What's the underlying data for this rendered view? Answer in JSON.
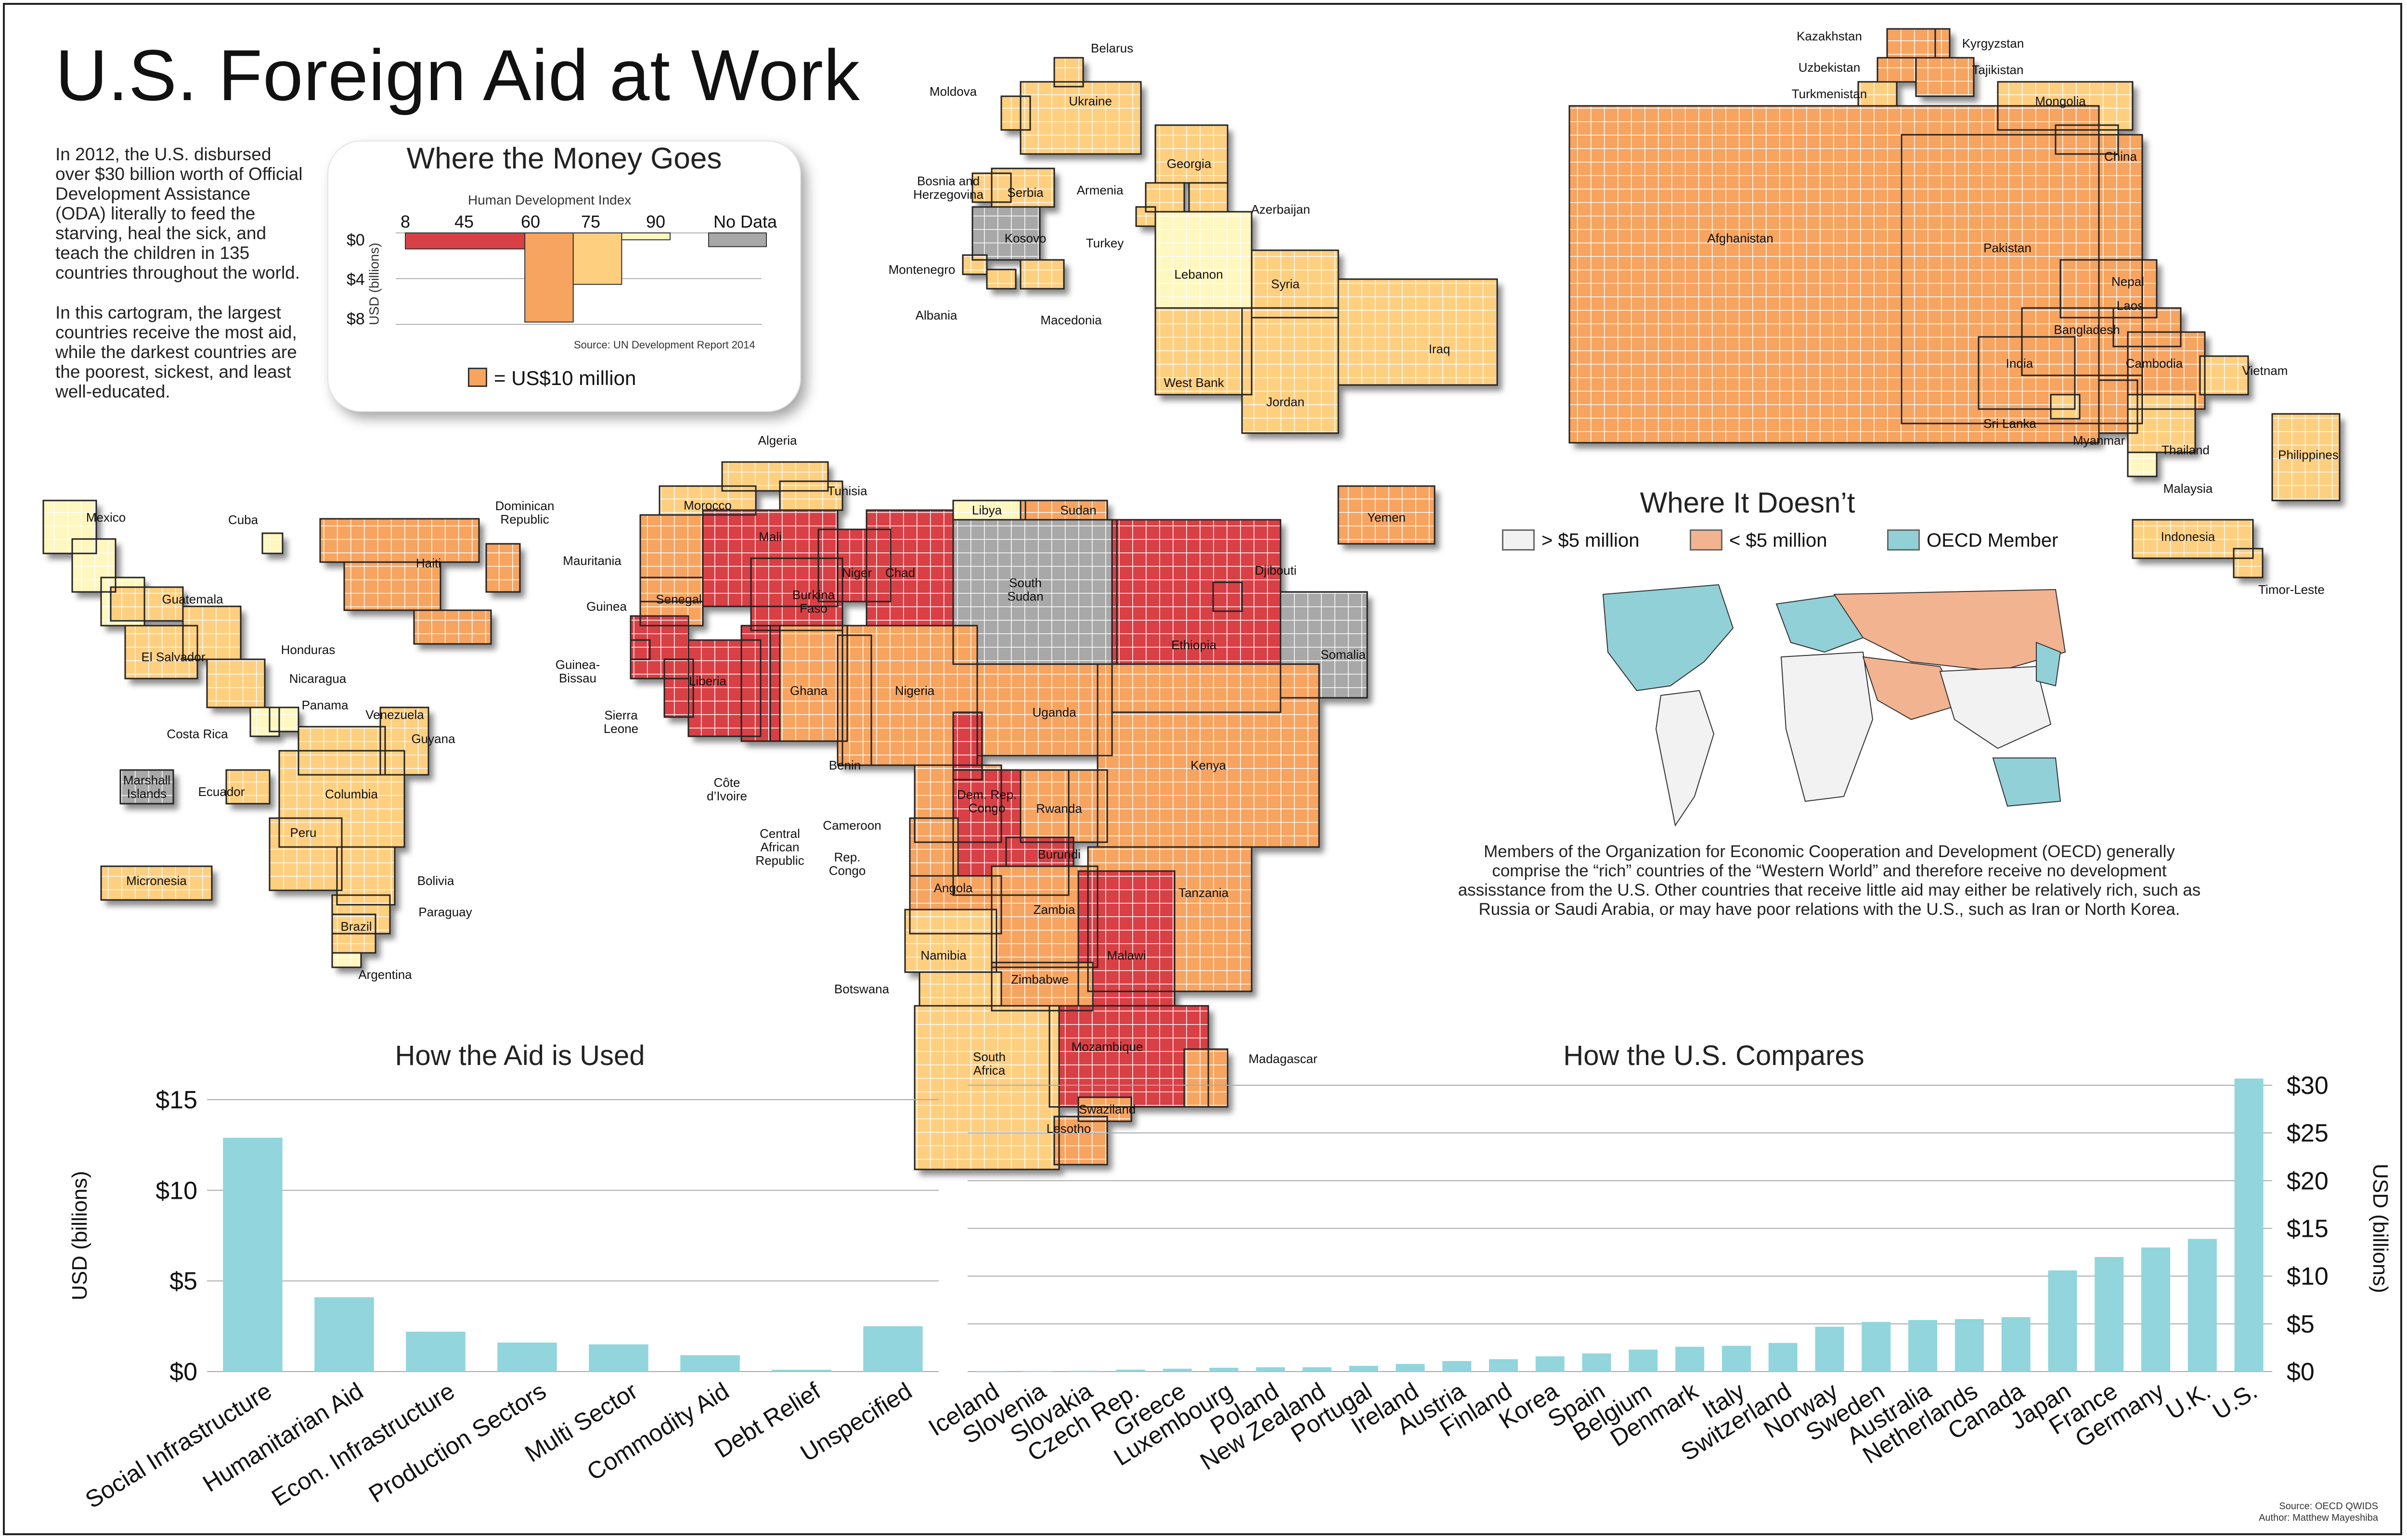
{
  "title": "U.S. Foreign Aid at Work",
  "intro": {
    "p1": "In 2012, the U.S. disbursed over $30 billion worth of Official Development Assistance (ODA) literally to feed the starving, heal the sick, and teach the children in 135 countries throughout the world.",
    "p2": "In this cartogram, the largest countries receive the most aid, while the darkest countries are the poorest, sickest, and least well-educated."
  },
  "legend": {
    "title": "Where the Money Goes",
    "hdi_label": "Human Development Index",
    "hdi_ticks": [
      "8",
      "45",
      "60",
      "75",
      "90"
    ],
    "no_data_label": "No Data",
    "usd_ticks": [
      "$0",
      "$4",
      "$8"
    ],
    "usd_axis_label": "USD (billions)",
    "source": "Source: UN Development Report 2014",
    "cell_legend": "= US$10 million",
    "bars": [
      {
        "hdi_from": 8,
        "hdi_to": 45,
        "usd_billions": 1.4,
        "color": "#d94045"
      },
      {
        "hdi_from": 45,
        "hdi_to": 60,
        "usd_billions": 7.8,
        "color": "#f7a460"
      },
      {
        "hdi_from": 60,
        "hdi_to": 75,
        "usd_billions": 4.5,
        "color": "#ffcf80"
      },
      {
        "hdi_from": 75,
        "hdi_to": 90,
        "usd_billions": 0.6,
        "color": "#fff7c0"
      },
      {
        "hdi_from": "No Data",
        "hdi_to": null,
        "usd_billions": 1.2,
        "color": "#a8a8a8"
      }
    ]
  },
  "map": {
    "colors": {
      "lowest": "#d94045",
      "low": "#f7a460",
      "mid": "#ffcf80",
      "high": "#fff7c0",
      "nodata": "#a8a8a8"
    },
    "regions": [
      {
        "name": "Mexico",
        "level": "high"
      },
      {
        "name": "Cuba",
        "level": "high"
      },
      {
        "name": "Dominican Republic",
        "level": "low"
      },
      {
        "name": "Haiti",
        "level": "low"
      },
      {
        "name": "Guatemala",
        "level": "mid"
      },
      {
        "name": "Honduras",
        "level": "mid"
      },
      {
        "name": "El Salvador",
        "level": "mid"
      },
      {
        "name": "Nicaragua",
        "level": "mid"
      },
      {
        "name": "Panama",
        "level": "high"
      },
      {
        "name": "Costa Rica",
        "level": "high"
      },
      {
        "name": "Venezuela",
        "level": "mid"
      },
      {
        "name": "Guyana",
        "level": "mid"
      },
      {
        "name": "Marshall Islands",
        "level": "nodata"
      },
      {
        "name": "Ecuador",
        "level": "mid"
      },
      {
        "name": "Columbia",
        "level": "mid"
      },
      {
        "name": "Peru",
        "level": "mid"
      },
      {
        "name": "Bolivia",
        "level": "mid"
      },
      {
        "name": "Paraguay",
        "level": "mid"
      },
      {
        "name": "Brazil",
        "level": "mid"
      },
      {
        "name": "Argentina",
        "level": "high"
      },
      {
        "name": "Micronesia",
        "level": "mid"
      },
      {
        "name": "Algeria",
        "level": "mid"
      },
      {
        "name": "Morocco",
        "level": "mid"
      },
      {
        "name": "Tunisia",
        "level": "mid"
      },
      {
        "name": "Libya",
        "level": "high"
      },
      {
        "name": "Sudan",
        "level": "low"
      },
      {
        "name": "Mali",
        "level": "lowest"
      },
      {
        "name": "Niger",
        "level": "lowest"
      },
      {
        "name": "Chad",
        "level": "lowest"
      },
      {
        "name": "Mauritania",
        "level": "low"
      },
      {
        "name": "Senegal",
        "level": "low"
      },
      {
        "name": "Burkina Faso",
        "level": "lowest"
      },
      {
        "name": "South Sudan",
        "level": "nodata"
      },
      {
        "name": "Djibouti",
        "level": "low"
      },
      {
        "name": "Guinea",
        "level": "lowest"
      },
      {
        "name": "Guinea-Bissau",
        "level": "lowest"
      },
      {
        "name": "Liberia",
        "level": "lowest"
      },
      {
        "name": "Ghana",
        "level": "low"
      },
      {
        "name": "Nigeria",
        "level": "low"
      },
      {
        "name": "Ethiopia",
        "level": "lowest"
      },
      {
        "name": "Somalia",
        "level": "nodata"
      },
      {
        "name": "Sierra Leone",
        "level": "lowest"
      },
      {
        "name": "Côte d'Ivoire",
        "level": "lowest"
      },
      {
        "name": "Benin",
        "level": "low"
      },
      {
        "name": "Uganda",
        "level": "low"
      },
      {
        "name": "Kenya",
        "level": "low"
      },
      {
        "name": "Cameroon",
        "level": "low"
      },
      {
        "name": "Dem. Rep. Congo",
        "level": "lowest"
      },
      {
        "name": "Rwanda",
        "level": "low"
      },
      {
        "name": "Central African Republic",
        "level": "lowest"
      },
      {
        "name": "Burundi",
        "level": "lowest"
      },
      {
        "name": "Rep. Congo",
        "level": "low"
      },
      {
        "name": "Angola",
        "level": "low"
      },
      {
        "name": "Tanzania",
        "level": "low"
      },
      {
        "name": "Zambia",
        "level": "low"
      },
      {
        "name": "Namibia",
        "level": "mid"
      },
      {
        "name": "Malawi",
        "level": "lowest"
      },
      {
        "name": "Zimbabwe",
        "level": "low"
      },
      {
        "name": "Botswana",
        "level": "mid"
      },
      {
        "name": "Mozambique",
        "level": "lowest"
      },
      {
        "name": "Madagascar",
        "level": "low"
      },
      {
        "name": "South Africa",
        "level": "mid"
      },
      {
        "name": "Swaziland",
        "level": "low"
      },
      {
        "name": "Lesotho",
        "level": "low"
      },
      {
        "name": "Belarus",
        "level": "mid"
      },
      {
        "name": "Moldova",
        "level": "mid"
      },
      {
        "name": "Ukraine",
        "level": "mid"
      },
      {
        "name": "Bosnia and Herzegovina",
        "level": "mid"
      },
      {
        "name": "Serbia",
        "level": "mid"
      },
      {
        "name": "Kosovo",
        "level": "nodata"
      },
      {
        "name": "Montenegro",
        "level": "mid"
      },
      {
        "name": "Albania",
        "level": "mid"
      },
      {
        "name": "Macedonia",
        "level": "mid"
      },
      {
        "name": "Georgia",
        "level": "mid"
      },
      {
        "name": "Armenia",
        "level": "mid"
      },
      {
        "name": "Azerbaijan",
        "level": "mid"
      },
      {
        "name": "Turkey",
        "level": "mid"
      },
      {
        "name": "Lebanon",
        "level": "high"
      },
      {
        "name": "Syria",
        "level": "mid"
      },
      {
        "name": "West Bank",
        "level": "mid"
      },
      {
        "name": "Jordan",
        "level": "mid"
      },
      {
        "name": "Iraq",
        "level": "mid"
      },
      {
        "name": "Yemen",
        "level": "low"
      },
      {
        "name": "Kazakhstan",
        "level": "mid"
      },
      {
        "name": "Kyrgyzstan",
        "level": "low"
      },
      {
        "name": "Uzbekistan",
        "level": "low"
      },
      {
        "name": "Tajikistan",
        "level": "low"
      },
      {
        "name": "Turkmenistan",
        "level": "mid"
      },
      {
        "name": "Mongolia",
        "level": "mid"
      },
      {
        "name": "China",
        "level": "mid"
      },
      {
        "name": "Afghanistan",
        "level": "low"
      },
      {
        "name": "Pakistan",
        "level": "low"
      },
      {
        "name": "Nepal",
        "level": "low"
      },
      {
        "name": "Laos",
        "level": "low"
      },
      {
        "name": "Bangladesh",
        "level": "low"
      },
      {
        "name": "India",
        "level": "low"
      },
      {
        "name": "Cambodia",
        "level": "low"
      },
      {
        "name": "Vietnam",
        "level": "mid"
      },
      {
        "name": "Sri Lanka",
        "level": "mid"
      },
      {
        "name": "Myanmar",
        "level": "low"
      },
      {
        "name": "Thailand",
        "level": "mid"
      },
      {
        "name": "Malaysia",
        "level": "high"
      },
      {
        "name": "Philippines",
        "level": "mid"
      },
      {
        "name": "Indonesia",
        "level": "mid"
      },
      {
        "name": "Timor-Leste",
        "level": "mid"
      }
    ]
  },
  "where_it_doesnt": {
    "title": "Where It Doesn’t",
    "legend": [
      {
        "label": "> $5 million",
        "color": "#f2f2f2"
      },
      {
        "label": "< $5 million",
        "color": "#f2b391"
      },
      {
        "label": "OECD Member",
        "color": "#92d0d8"
      }
    ],
    "text": "Members of the Organization for Economic Cooperation and Development (OECD) generally comprise the “rich” countries of the “Western World” and therefore receive no development assisstance from the U.S. Other countries that receive little aid may either be relatively rich, such as Russia or Saudi Arabia, or may have poor relations with the U.S., such as Iran or North Korea."
  },
  "chart_data": [
    {
      "type": "bar",
      "title": "How the Aid is Used",
      "ylabel": "USD (billions)",
      "ylim": [
        0,
        15
      ],
      "yticks": [
        "$0",
        "$5",
        "$10",
        "$15"
      ],
      "color": "#92d5dc",
      "categories": [
        "Social Infrastructure",
        "Humanitarian Aid",
        "Econ. Infrastructure",
        "Production Sectors",
        "Multi Sector",
        "Commodity Aid",
        "Debt Relief",
        "Unspecified"
      ],
      "values": [
        12.9,
        4.1,
        2.2,
        1.6,
        1.5,
        0.9,
        0.1,
        2.5
      ]
    },
    {
      "type": "bar",
      "title": "How the U.S. Compares",
      "ylabel": "USD (billions)",
      "ylim": [
        0,
        30
      ],
      "yticks": [
        "$0",
        "$5",
        "$10",
        "$15",
        "$20",
        "$25",
        "$30"
      ],
      "color": "#92d5dc",
      "categories": [
        "Iceland",
        "Slovenia",
        "Slovakia",
        "Czech Rep.",
        "Greece",
        "Luxembourg",
        "Poland",
        "New Zealand",
        "Portugal",
        "Ireland",
        "Austria",
        "Finland",
        "Korea",
        "Spain",
        "Belgium",
        "Denmark",
        "Italy",
        "Switzerland",
        "Norway",
        "Sweden",
        "Australia",
        "Netherlands",
        "Canada",
        "Japan",
        "France",
        "Germany",
        "U.K.",
        "U.S."
      ],
      "values": [
        0.03,
        0.06,
        0.08,
        0.2,
        0.3,
        0.4,
        0.45,
        0.45,
        0.6,
        0.8,
        1.1,
        1.3,
        1.6,
        1.9,
        2.3,
        2.6,
        2.7,
        3.0,
        4.7,
        5.2,
        5.4,
        5.5,
        5.7,
        10.6,
        12.0,
        13.0,
        13.9,
        30.7
      ]
    }
  ],
  "footer": {
    "source": "Source: OECD QWIDS",
    "author": "Author: Matthew Mayeshiba"
  }
}
